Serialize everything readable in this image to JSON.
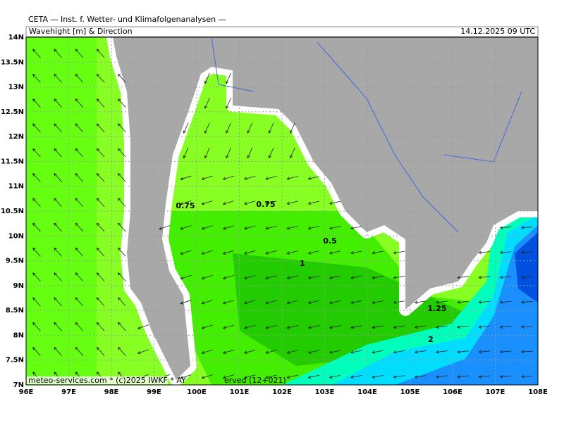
{
  "header": {
    "title": "CETA — Inst. f. Wetter- und Klimafolgenanalysen —",
    "subtitle": "Wavehight [m] & Direction",
    "timestamp": "14.12.2025 09 UTC"
  },
  "map": {
    "xlim": [
      96,
      108
    ],
    "ylim": [
      7,
      14
    ],
    "lon_ticks": [
      {
        "value": 96,
        "label": "96E"
      },
      {
        "value": 97,
        "label": "97E"
      },
      {
        "value": 98,
        "label": "98E"
      },
      {
        "value": 99,
        "label": "99E"
      },
      {
        "value": 100,
        "label": "100E"
      },
      {
        "value": 101,
        "label": "101E"
      },
      {
        "value": 102,
        "label": "102E"
      },
      {
        "value": 103,
        "label": "103E"
      },
      {
        "value": 104,
        "label": "104E"
      },
      {
        "value": 105,
        "label": "105E"
      },
      {
        "value": 106,
        "label": "106E"
      },
      {
        "value": 107,
        "label": "107E"
      },
      {
        "value": 108,
        "label": "108E"
      }
    ],
    "lat_ticks": [
      {
        "value": 7,
        "label": "7N"
      },
      {
        "value": 7.5,
        "label": "7.5N"
      },
      {
        "value": 8,
        "label": "8N"
      },
      {
        "value": 8.5,
        "label": "8.5N"
      },
      {
        "value": 9,
        "label": "9N"
      },
      {
        "value": 9.5,
        "label": "9.5N"
      },
      {
        "value": 10,
        "label": "10N"
      },
      {
        "value": 10.5,
        "label": "10.5N"
      },
      {
        "value": 11,
        "label": "11N"
      },
      {
        "value": 11.5,
        "label": "11.5N"
      },
      {
        "value": 12,
        "label": "12N"
      },
      {
        "value": 12.5,
        "label": "12.5N"
      },
      {
        "value": 13,
        "label": "13N"
      },
      {
        "value": 13.5,
        "label": "13.5N"
      },
      {
        "value": 14,
        "label": "14N"
      }
    ],
    "contour_labels": [
      "0.75",
      "0.75",
      "0.5",
      "1",
      "1.25",
      "2"
    ]
  },
  "footer": {
    "credit": "meteo-services.com * (c)2025 IWKF * AY",
    "run": "erved (12+021)"
  }
}
